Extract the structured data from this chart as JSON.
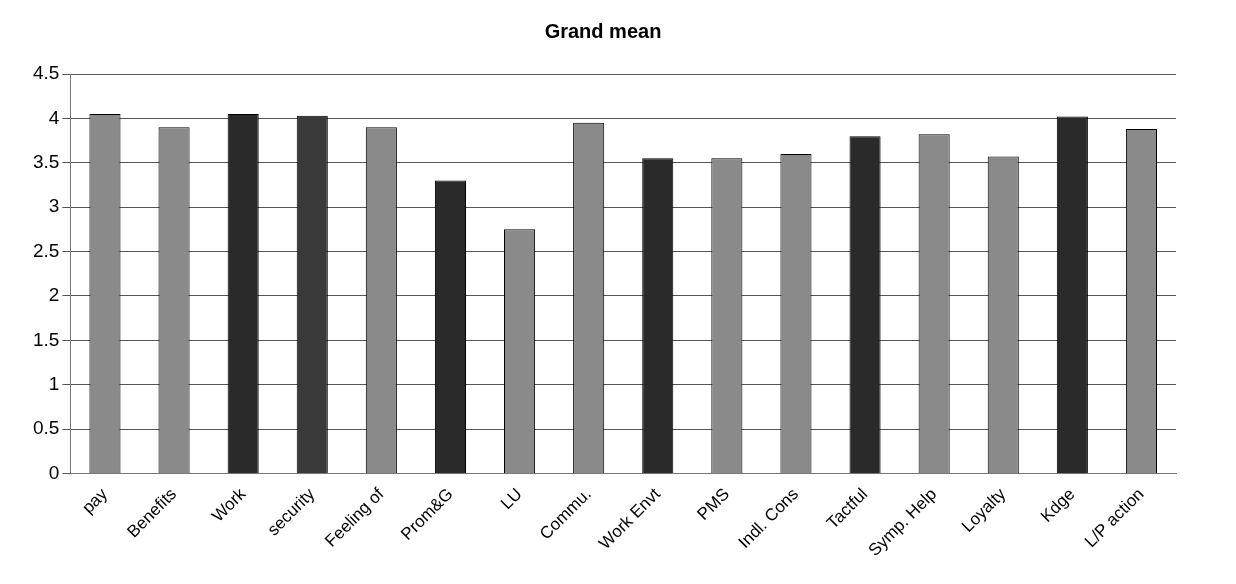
{
  "chart_data": {
    "type": "bar",
    "title": "Grand mean",
    "categories": [
      "pay",
      "Benefits",
      "Work",
      "security",
      "Feeling of",
      "Prom&G",
      "LU",
      "Commu.",
      "Work Envt",
      "PMS",
      "Indl. Cons",
      "Tactful",
      "Symp. Help",
      "Loyalty",
      "Kdge",
      "L/P action"
    ],
    "values": [
      4.05,
      3.9,
      4.05,
      4.03,
      3.9,
      3.3,
      2.75,
      3.95,
      3.55,
      3.55,
      3.6,
      3.8,
      3.82,
      3.57,
      4.02,
      3.88
    ],
    "colors": [
      "#8a8a8a",
      "#8a8a8a",
      "#2a2a2a",
      "#3a3a3a",
      "#8a8a8a",
      "#2a2a2a",
      "#8a8a8a",
      "#8a8a8a",
      "#2a2a2a",
      "#8a8a8a",
      "#8a8a8a",
      "#2a2a2a",
      "#8a8a8a",
      "#8a8a8a",
      "#2a2a2a",
      "#8a8a8a"
    ],
    "ylim": [
      0,
      4.5
    ],
    "yticks": [
      0,
      0.5,
      1,
      1.5,
      2,
      2.5,
      3,
      3.5,
      4,
      4.5
    ],
    "grid": "y",
    "legend": false
  }
}
